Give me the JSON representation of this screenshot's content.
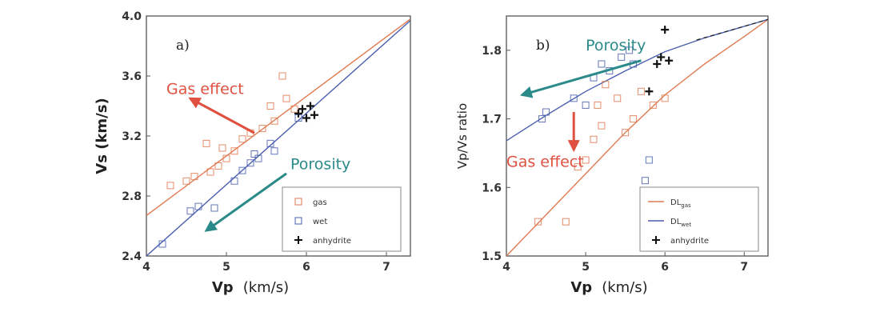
{
  "colors": {
    "gas": "#e07a50",
    "wet": "#4a5faf",
    "anhydrite": "#111111",
    "porosity": "#2a8a8a",
    "gas_arrow": "#e05040"
  },
  "chart_data": [
    {
      "type": "scatter",
      "panel_label": "a)",
      "xlabel": "Vp",
      "xlabel_units": "(km/s)",
      "ylabel": "Vs (km/s)",
      "xlim": [
        4.0,
        7.3
      ],
      "ylim": [
        2.4,
        4.0
      ],
      "xticks": [
        "4",
        "5",
        "6",
        "7"
      ],
      "yticks": [
        "2.4",
        "2.8",
        "3.2",
        "3.6",
        "4.0"
      ],
      "series": [
        {
          "name": "gas",
          "marker": "open-square",
          "color": "gas",
          "points": [
            [
              4.3,
              2.87
            ],
            [
              4.5,
              2.9
            ],
            [
              4.6,
              2.93
            ],
            [
              4.8,
              2.96
            ],
            [
              4.9,
              3.0
            ],
            [
              5.0,
              3.05
            ],
            [
              5.1,
              3.1
            ],
            [
              5.2,
              3.18
            ],
            [
              5.3,
              3.22
            ],
            [
              5.45,
              3.25
            ],
            [
              5.6,
              3.3
            ],
            [
              5.7,
              3.6
            ],
            [
              5.75,
              3.45
            ],
            [
              5.85,
              3.38
            ],
            [
              4.75,
              3.15
            ],
            [
              4.95,
              3.12
            ],
            [
              5.55,
              3.4
            ]
          ]
        },
        {
          "name": "wet",
          "marker": "open-square",
          "color": "wet",
          "points": [
            [
              4.2,
              2.48
            ],
            [
              4.55,
              2.7
            ],
            [
              4.65,
              2.73
            ],
            [
              4.85,
              2.72
            ],
            [
              5.1,
              2.9
            ],
            [
              5.2,
              2.97
            ],
            [
              5.3,
              3.02
            ],
            [
              5.35,
              3.08
            ],
            [
              5.4,
              3.05
            ],
            [
              5.55,
              3.15
            ],
            [
              5.6,
              3.1
            ],
            [
              5.9,
              3.32
            ]
          ]
        },
        {
          "name": "anhydrite",
          "marker": "plus",
          "color": "anhydrite",
          "points": [
            [
              5.9,
              3.35
            ],
            [
              5.95,
              3.38
            ],
            [
              6.0,
              3.32
            ],
            [
              6.05,
              3.4
            ],
            [
              6.1,
              3.34
            ]
          ]
        }
      ],
      "lines": [
        {
          "series": "gas",
          "points": [
            [
              4.0,
              2.67
            ],
            [
              7.3,
              3.98
            ]
          ]
        },
        {
          "series": "wet",
          "points": [
            [
              4.0,
              2.4
            ],
            [
              7.3,
              3.97
            ]
          ]
        }
      ],
      "annotations": [
        {
          "text": "Gas effect",
          "color": "gas_arrow",
          "at": [
            4.25,
            3.48
          ],
          "arrow_from": [
            5.35,
            3.22
          ],
          "arrow_to": [
            4.55,
            3.45
          ]
        },
        {
          "text": "Porosity",
          "color": "porosity",
          "at": [
            5.8,
            2.98
          ],
          "arrow_from": [
            5.75,
            2.95
          ],
          "arrow_to": [
            4.75,
            2.57
          ]
        }
      ],
      "legend": {
        "position": "lower-right",
        "entries": [
          {
            "series": "gas",
            "label": "gas"
          },
          {
            "series": "wet",
            "label": "wet"
          },
          {
            "series": "anhydrite",
            "label": "anhydrite"
          }
        ]
      }
    },
    {
      "type": "scatter",
      "panel_label": "b)",
      "xlabel": "Vp",
      "xlabel_units": "(km/s)",
      "ylabel": "Vp/Vs ratio",
      "xlim": [
        4.0,
        7.3
      ],
      "ylim": [
        1.5,
        1.85
      ],
      "xticks": [
        "4",
        "5",
        "6",
        "7"
      ],
      "yticks": [
        "1.5",
        "1.6",
        "1.7",
        "1.8"
      ],
      "series": [
        {
          "name": "gas",
          "marker": "open-square",
          "color": "gas",
          "points": [
            [
              4.4,
              1.55
            ],
            [
              4.75,
              1.55
            ],
            [
              4.9,
              1.63
            ],
            [
              5.0,
              1.64
            ],
            [
              5.1,
              1.67
            ],
            [
              5.15,
              1.72
            ],
            [
              5.2,
              1.69
            ],
            [
              5.25,
              1.75
            ],
            [
              5.4,
              1.73
            ],
            [
              5.5,
              1.68
            ],
            [
              5.6,
              1.7
            ],
            [
              5.7,
              1.74
            ],
            [
              5.85,
              1.72
            ],
            [
              6.0,
              1.73
            ]
          ]
        },
        {
          "name": "wet",
          "marker": "open-square",
          "color": "wet",
          "points": [
            [
              4.45,
              1.7
            ],
            [
              4.5,
              1.71
            ],
            [
              4.85,
              1.73
            ],
            [
              5.0,
              1.72
            ],
            [
              5.1,
              1.76
            ],
            [
              5.2,
              1.78
            ],
            [
              5.3,
              1.77
            ],
            [
              5.45,
              1.79
            ],
            [
              5.55,
              1.8
            ],
            [
              5.6,
              1.78
            ],
            [
              5.75,
              1.61
            ],
            [
              5.8,
              1.64
            ]
          ]
        },
        {
          "name": "anhydrite",
          "marker": "plus",
          "color": "anhydrite",
          "points": [
            [
              5.8,
              1.74
            ],
            [
              5.9,
              1.78
            ],
            [
              5.95,
              1.79
            ],
            [
              6.0,
              1.83
            ],
            [
              6.05,
              1.785
            ]
          ]
        }
      ],
      "lines": [
        {
          "series": "gas",
          "points": [
            [
              4.0,
              1.5
            ],
            [
              4.5,
              1.56
            ],
            [
              5.0,
              1.62
            ],
            [
              5.5,
              1.68
            ],
            [
              6.0,
              1.735
            ],
            [
              6.5,
              1.78
            ],
            [
              7.0,
              1.82
            ],
            [
              7.3,
              1.845
            ]
          ]
        },
        {
          "series": "wet",
          "points": [
            [
              4.0,
              1.668
            ],
            [
              4.5,
              1.705
            ],
            [
              5.0,
              1.74
            ],
            [
              5.5,
              1.77
            ],
            [
              6.0,
              1.798
            ],
            [
              6.5,
              1.818
            ],
            [
              7.0,
              1.835
            ],
            [
              7.3,
              1.845
            ]
          ]
        }
      ],
      "annotations": [
        {
          "text": "Porosity",
          "color": "porosity",
          "at": [
            5.0,
            1.8
          ],
          "arrow_from": [
            5.7,
            1.785
          ],
          "arrow_to": [
            4.2,
            1.735
          ]
        },
        {
          "text": "Gas effect",
          "color": "gas_arrow",
          "at": [
            4.0,
            1.63
          ],
          "arrow_from": [
            4.85,
            1.71
          ],
          "arrow_to": [
            4.85,
            1.655
          ]
        }
      ],
      "legend": {
        "position": "lower-right",
        "entries": [
          {
            "series": "gas",
            "label": "DL",
            "sub": "gas"
          },
          {
            "series": "wet",
            "label": "DL",
            "sub": "wet"
          },
          {
            "series": "anhydrite",
            "label": "anhydrite"
          }
        ]
      }
    }
  ]
}
